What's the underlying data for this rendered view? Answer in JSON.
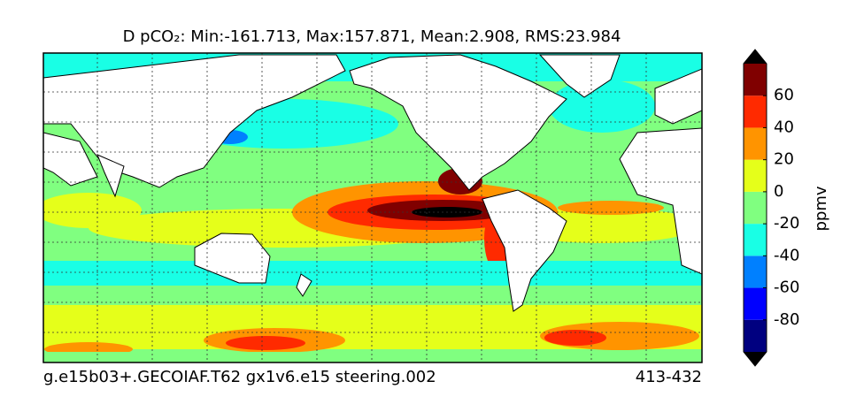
{
  "title": "D pCO₂: Min:-161.713, Max:157.871, Mean:2.908, RMS:23.984",
  "footer_left": "g.e15b03+.GECOIAF.T62 gx1v6.e15 steering.002",
  "footer_right": "413-432",
  "colorbar": {
    "label": "ppmv",
    "levels": [
      -100,
      -80,
      -60,
      -40,
      -20,
      0,
      20,
      40,
      60,
      80
    ],
    "ticks": [
      -80,
      -60,
      -40,
      -20,
      0,
      20,
      40,
      60
    ],
    "colors": [
      "#000080",
      "#0000ff",
      "#0080ff",
      "#19ffe5",
      "#80ff80",
      "#e5ff1a",
      "#ff9400",
      "#ff2a00",
      "#800000"
    ]
  }
}
